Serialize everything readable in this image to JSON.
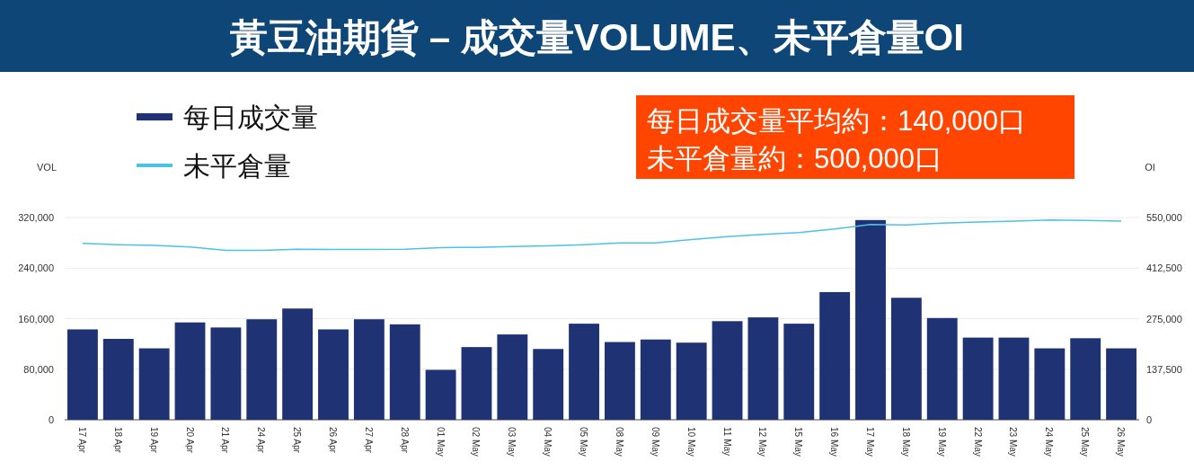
{
  "chart_data": {
    "type": "bar",
    "title": "黃豆油期貨 – 成交量VOLUME、未平倉量OI",
    "categories": [
      "17 Apr",
      "18 Apr",
      "19 Apr",
      "20 Apr",
      "21 Apr",
      "24 Apr",
      "25 Apr",
      "26 Apr",
      "27 Apr",
      "28 Apr",
      "01 May",
      "02 May",
      "03 May",
      "04 May",
      "05 May",
      "08 May",
      "09 May",
      "10 May",
      "11 May",
      "12 May",
      "15 May",
      "16 May",
      "17 May",
      "18 May",
      "19 May",
      "22 May",
      "23 May",
      "24 May",
      "25 May",
      "26 May"
    ],
    "series": [
      {
        "name": "每日成交量",
        "color": "#1f3274",
        "values": [
          143000,
          128000,
          113000,
          154000,
          146000,
          159000,
          176000,
          143000,
          159000,
          151000,
          79000,
          115000,
          135000,
          112000,
          152000,
          123000,
          127000,
          122000,
          156000,
          162000,
          152000,
          202000,
          316000,
          193000,
          161000,
          130000,
          130000,
          113000,
          129000,
          113000
        ]
      },
      {
        "name": "未平倉量",
        "type": "line",
        "axis": "y2",
        "color": "#4cc3e6",
        "values": [
          480000,
          476000,
          474000,
          470000,
          461000,
          461000,
          464000,
          463000,
          463000,
          464000,
          468000,
          469000,
          471000,
          473000,
          476000,
          481000,
          481000,
          490000,
          498000,
          504000,
          509000,
          519000,
          531000,
          530000,
          535000,
          538000,
          540000,
          543000,
          542000,
          540000
        ]
      }
    ],
    "ylabel": "VOL",
    "y2label": "OI",
    "ylim": [
      0,
      320000
    ],
    "yticks": [
      0,
      {
        "value": 80000,
        "label": "80,000"
      },
      {
        "value": 160000,
        "label": "160,000"
      },
      {
        "value": 240000,
        "label": "240,000"
      },
      {
        "value": 320000,
        "label": "320,000"
      }
    ],
    "y2lim": [
      0,
      550000
    ],
    "y2ticks": [
      0,
      {
        "value": 137500,
        "label": "137,500"
      },
      {
        "value": 275000,
        "label": "275,000"
      },
      {
        "value": 412500,
        "label": "412,500"
      },
      {
        "value": 550000,
        "label": "550,000"
      }
    ],
    "grid": "y",
    "legend": "top left",
    "annotations": [
      "每日成交量平均約：140,000口",
      "未平倉量約：500,000口"
    ]
  }
}
